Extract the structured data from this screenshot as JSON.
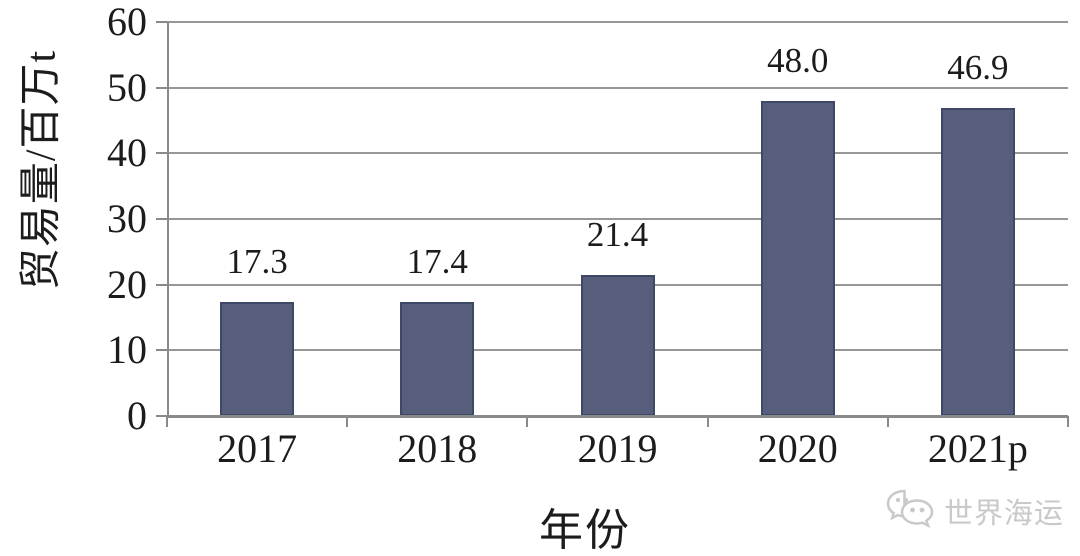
{
  "chart_data": {
    "type": "bar",
    "title": "",
    "categories": [
      "2017",
      "2018",
      "2019",
      "2020",
      "2021p"
    ],
    "values": [
      17.3,
      17.4,
      21.4,
      48.0,
      46.9
    ],
    "value_labels": [
      "17.3",
      "17.4",
      "21.4",
      "48.0",
      "46.9"
    ],
    "xlabel": "年份",
    "ylabel": "贸易量/百万t",
    "ylim": [
      0,
      60
    ],
    "ytick_step": 10,
    "ytick_labels": [
      "0",
      "10",
      "20",
      "30",
      "40",
      "50",
      "60"
    ],
    "grid": "horizontal-only",
    "legend": "none",
    "colors": {
      "bar_fill": "#565E7C",
      "bar_border": "#404868",
      "gridline": "#979797",
      "axis": "#8a8a8a",
      "text": "#1c1c1c"
    }
  },
  "watermark": {
    "icon": "wechat-icon",
    "text": "世界海运",
    "color": "#c9c9c9"
  }
}
